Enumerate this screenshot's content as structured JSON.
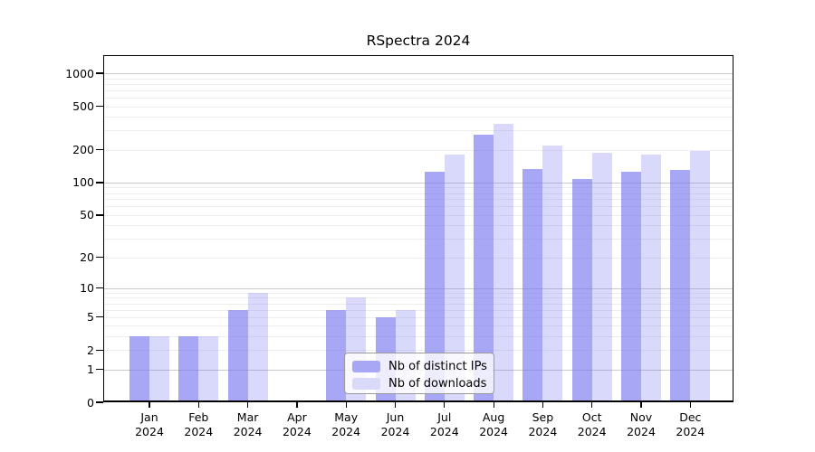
{
  "title": "RSpectra 2024",
  "chart_data": {
    "type": "bar",
    "title": "RSpectra 2024",
    "categories": [
      "Jan",
      "Feb",
      "Mar",
      "Apr",
      "May",
      "Jun",
      "Jul",
      "Aug",
      "Sep",
      "Oct",
      "Nov",
      "Dec"
    ],
    "x_tick_year": "2024",
    "series": [
      {
        "name": "Nb of distinct IPs",
        "values": [
          3,
          3,
          6,
          0,
          6,
          5,
          126,
          277,
          134,
          108,
          126,
          130
        ],
        "legend_color": "#a7a7f5",
        "fill_alpha": 0.65
      },
      {
        "name": "Nb of downloads",
        "values": [
          3,
          3,
          9,
          0,
          8,
          6,
          181,
          345,
          220,
          186,
          181,
          195
        ],
        "legend_color": "#d9d9fa",
        "fill_alpha": 0.28
      }
    ],
    "base_color_rgb": "120,120,240",
    "y_ticks": [
      0,
      1,
      2,
      5,
      10,
      20,
      50,
      100,
      200,
      500,
      1000
    ],
    "y_scale": "log10(1+x)",
    "ylim": [
      0,
      1465
    ],
    "grid": true,
    "grid_major_color": "#c9c9c9",
    "grid_minor_color": "#ededed",
    "legend_position": "inside-bottom-center",
    "xlabel": "",
    "ylabel": ""
  }
}
